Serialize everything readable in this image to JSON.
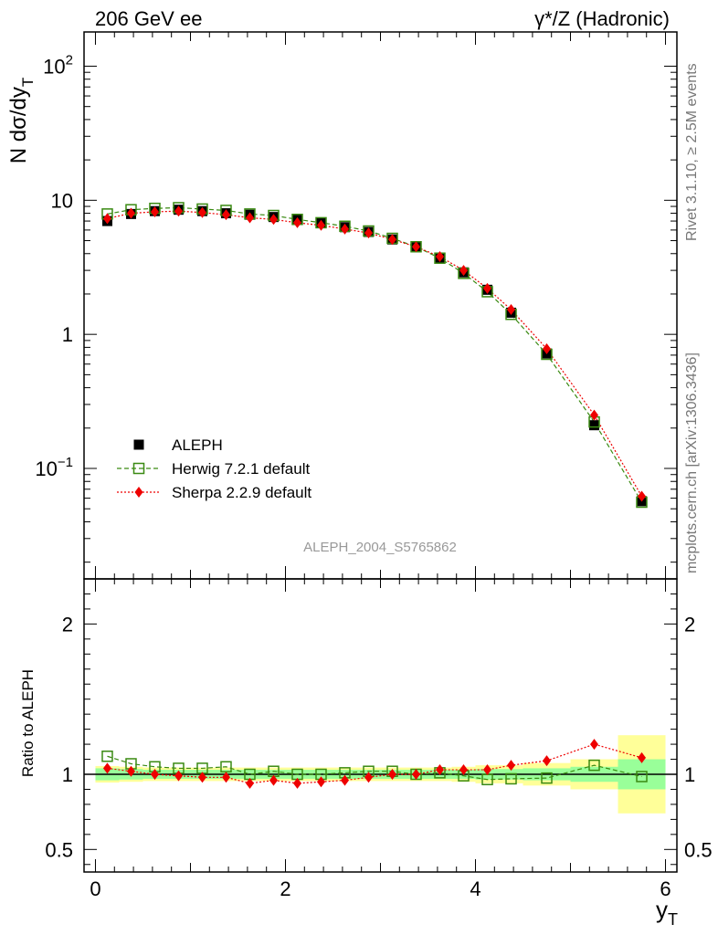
{
  "header": {
    "left": "206 GeV ee",
    "right": "γ*/Z (Hadronic)"
  },
  "side_labels": {
    "rivet": "Rivet 3.1.10, ≥ 2.5M events",
    "mcplots": "mcplots.cern.ch [arXiv:1306.3436]"
  },
  "watermark": "ALEPH_2004_S5765862",
  "chart_data": [
    {
      "type": "scatter",
      "panel": "main",
      "ylabel": "N dσ/dy",
      "ylabel_subscript": "T",
      "yscale": "log",
      "ylim": [
        0.015,
        180
      ],
      "xlim": [
        -0.12,
        6.12
      ],
      "yticks": [
        {
          "value": 100,
          "base": "10",
          "exp": "2"
        },
        {
          "value": 10,
          "base": "10",
          "exp": ""
        },
        {
          "value": 1,
          "base": "1",
          "exp": ""
        },
        {
          "value": 0.1,
          "base": "10",
          "exp": "−1"
        }
      ],
      "legend": {
        "position": "lower-left",
        "entries": [
          "ALEPH",
          "Herwig 7.2.1 default",
          "Sherpa 2.2.9 default"
        ]
      },
      "x": [
        0.125,
        0.375,
        0.625,
        0.875,
        1.125,
        1.375,
        1.625,
        1.875,
        2.125,
        2.375,
        2.625,
        2.875,
        3.125,
        3.375,
        3.625,
        3.875,
        4.125,
        4.375,
        4.75,
        5.25,
        5.75
      ],
      "series": [
        {
          "name": "ALEPH",
          "color": "#000000",
          "marker": "filled-square",
          "values": [
            7.0,
            7.9,
            8.3,
            8.5,
            8.3,
            8.0,
            7.8,
            7.5,
            7.2,
            6.8,
            6.3,
            5.8,
            5.1,
            4.5,
            3.7,
            2.9,
            2.15,
            1.45,
            0.72,
            0.21,
            0.057
          ]
        },
        {
          "name": "Herwig 7.2.1 default",
          "color": "#3a8a12",
          "marker": "open-square",
          "linestyle": "dashed",
          "values": [
            7.9,
            8.5,
            8.7,
            8.8,
            8.6,
            8.4,
            7.9,
            7.7,
            7.2,
            6.8,
            6.4,
            5.9,
            5.2,
            4.5,
            3.7,
            2.85,
            2.08,
            1.41,
            0.71,
            0.222,
            0.056
          ]
        },
        {
          "name": "Sherpa 2.2.9 default",
          "color": "#ee0000",
          "marker": "diamond",
          "linestyle": "dotted",
          "values": [
            7.3,
            8.0,
            8.2,
            8.3,
            8.1,
            7.8,
            7.4,
            7.2,
            6.8,
            6.5,
            6.1,
            5.7,
            5.1,
            4.5,
            3.8,
            3.0,
            2.2,
            1.53,
            0.78,
            0.25,
            0.062
          ]
        }
      ]
    },
    {
      "type": "scatter",
      "panel": "ratio",
      "ylabel": "Ratio to ALEPH",
      "xlabel": "y",
      "xlabel_subscript": "T",
      "ylim": [
        0.35,
        2.3
      ],
      "xlim": [
        -0.12,
        6.12
      ],
      "xticks": [
        0,
        2,
        4,
        6
      ],
      "yticks": [
        0.5,
        1,
        2
      ],
      "x": [
        0.125,
        0.375,
        0.625,
        0.875,
        1.125,
        1.375,
        1.625,
        1.875,
        2.125,
        2.375,
        2.625,
        2.875,
        3.125,
        3.375,
        3.625,
        3.875,
        4.125,
        4.375,
        4.75,
        5.25,
        5.75
      ],
      "bin_edges": [
        0,
        0.25,
        0.5,
        0.75,
        1.0,
        1.25,
        1.5,
        1.75,
        2.0,
        2.25,
        2.5,
        2.75,
        3.0,
        3.25,
        3.5,
        3.75,
        4.0,
        4.25,
        4.5,
        5.0,
        5.5,
        6.0
      ],
      "bands": {
        "stat_color": "#99ff99",
        "total_color": "#ffff99",
        "stat": [
          0.04,
          0.035,
          0.03,
          0.03,
          0.03,
          0.03,
          0.03,
          0.03,
          0.03,
          0.03,
          0.03,
          0.03,
          0.03,
          0.03,
          0.03,
          0.03,
          0.035,
          0.035,
          0.04,
          0.05,
          0.1
        ],
        "total": [
          0.055,
          0.05,
          0.045,
          0.045,
          0.045,
          0.045,
          0.045,
          0.045,
          0.045,
          0.045,
          0.045,
          0.045,
          0.045,
          0.045,
          0.045,
          0.05,
          0.06,
          0.06,
          0.075,
          0.1,
          0.26
        ]
      },
      "series": [
        {
          "name": "Herwig 7.2.1 default",
          "color": "#3a8a12",
          "marker": "open-square",
          "linestyle": "dashed",
          "values": [
            1.12,
            1.07,
            1.05,
            1.04,
            1.04,
            1.05,
            1.0,
            1.02,
            1.0,
            1.0,
            1.01,
            1.02,
            1.02,
            1.0,
            1.01,
            0.99,
            0.965,
            0.97,
            0.975,
            1.06,
            0.985
          ]
        },
        {
          "name": "Sherpa 2.2.9 default",
          "color": "#ee0000",
          "marker": "diamond",
          "linestyle": "dotted",
          "values": [
            1.04,
            1.02,
            1.0,
            0.99,
            0.98,
            0.98,
            0.94,
            0.96,
            0.94,
            0.95,
            0.96,
            0.98,
            1.0,
            1.0,
            1.03,
            1.03,
            1.03,
            1.06,
            1.09,
            1.2,
            1.11
          ]
        }
      ]
    }
  ]
}
